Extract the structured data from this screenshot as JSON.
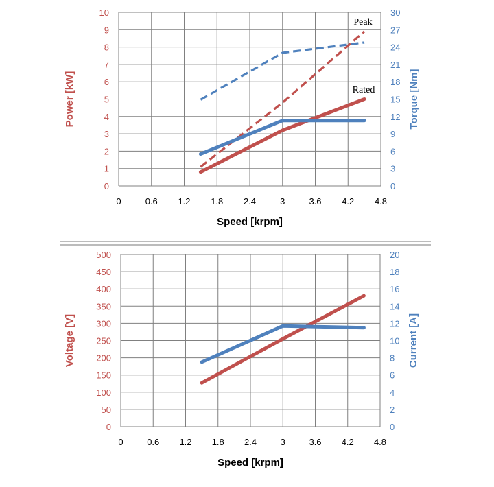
{
  "colors": {
    "red": "#C0504D",
    "blue": "#4F81BD",
    "grid": "#808080",
    "divider": "#a6a6a6"
  },
  "chart_data": [
    {
      "type": "line",
      "xlabel": "Speed [krpm]",
      "ylabel_left": "Power [kW]",
      "ylabel_right": "Torque [Nm]",
      "xlim": [
        0,
        4.8
      ],
      "xticks": [
        "0",
        "0.6",
        "1.2",
        "1.8",
        "2.4",
        "3",
        "3.6",
        "4.2",
        "4.8"
      ],
      "ylim_left": [
        0,
        10
      ],
      "yticks_left": [
        "0",
        "1",
        "2",
        "3",
        "4",
        "5",
        "6",
        "7",
        "8",
        "9",
        "10"
      ],
      "ylim_right": [
        0,
        30
      ],
      "yticks_right": [
        "0",
        "3",
        "6",
        "9",
        "12",
        "15",
        "18",
        "21",
        "24",
        "27",
        "30"
      ],
      "grid": true,
      "annotations": [
        "Peak",
        "Rated"
      ],
      "series": [
        {
          "axis": "left",
          "color": "red",
          "style": "solid",
          "x": [
            1.5,
            3,
            4.5
          ],
          "y": [
            0.8,
            3.2,
            5.0
          ]
        },
        {
          "axis": "left",
          "color": "red",
          "style": "dashed",
          "x": [
            1.5,
            3,
            4.5
          ],
          "y": [
            1.1,
            4.8,
            8.9
          ]
        },
        {
          "axis": "right",
          "color": "blue",
          "style": "solid",
          "x": [
            1.5,
            3,
            4.5
          ],
          "y": [
            5.5,
            11.3,
            11.3
          ]
        },
        {
          "axis": "right",
          "color": "blue",
          "style": "dashed",
          "x": [
            1.5,
            3,
            4.5
          ],
          "y": [
            14.9,
            23.0,
            24.8
          ]
        }
      ]
    },
    {
      "type": "line",
      "xlabel": "Speed [krpm]",
      "ylabel_left": "Voltage [V]",
      "ylabel_right": "Current [A]",
      "xlim": [
        0,
        4.8
      ],
      "xticks": [
        "0",
        "0.6",
        "1.2",
        "1.8",
        "2.4",
        "3",
        "3.6",
        "4.2",
        "4.8"
      ],
      "ylim_left": [
        0,
        500
      ],
      "yticks_left": [
        "0",
        "50",
        "100",
        "150",
        "200",
        "250",
        "300",
        "350",
        "400",
        "450",
        "500"
      ],
      "ylim_right": [
        0,
        20
      ],
      "yticks_right": [
        "0",
        "2",
        "4",
        "6",
        "8",
        "10",
        "12",
        "14",
        "16",
        "18",
        "20"
      ],
      "grid": true,
      "annotations": [],
      "series": [
        {
          "axis": "left",
          "color": "red",
          "style": "solid",
          "x": [
            1.5,
            3,
            4.5
          ],
          "y": [
            127,
            255,
            380
          ]
        },
        {
          "axis": "right",
          "color": "blue",
          "style": "solid",
          "x": [
            1.5,
            3,
            4.5
          ],
          "y": [
            7.5,
            11.7,
            11.5
          ]
        }
      ]
    }
  ]
}
